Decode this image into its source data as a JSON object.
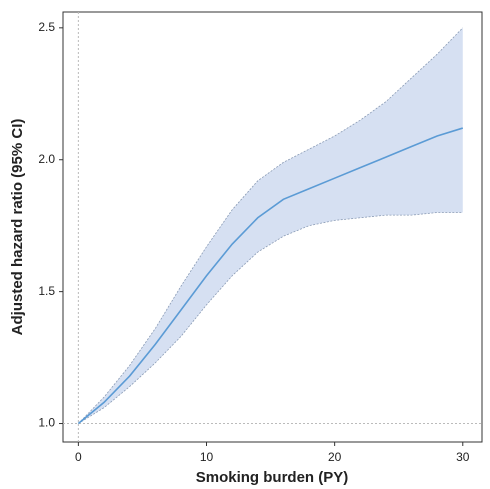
{
  "chart_data": {
    "type": "line",
    "xlabel": "Smoking burden (PY)",
    "ylabel": "Adjusted hazard ratio (95% CI)",
    "x": [
      0,
      2,
      4,
      6,
      8,
      10,
      12,
      14,
      16,
      18,
      20,
      22,
      24,
      26,
      28,
      30
    ],
    "series": [
      {
        "color": "#5b9bd5",
        "band_color": "#d6e0f2",
        "values": [
          1.0,
          1.08,
          1.18,
          1.3,
          1.43,
          1.56,
          1.68,
          1.78,
          1.85,
          1.89,
          1.93,
          1.97,
          2.01,
          2.05,
          2.09,
          2.12
        ],
        "upper": [
          1.0,
          1.1,
          1.22,
          1.36,
          1.52,
          1.67,
          1.81,
          1.92,
          1.99,
          2.04,
          2.09,
          2.15,
          2.22,
          2.31,
          2.4,
          2.5
        ],
        "lower": [
          1.0,
          1.06,
          1.14,
          1.23,
          1.33,
          1.45,
          1.56,
          1.65,
          1.71,
          1.75,
          1.77,
          1.78,
          1.79,
          1.79,
          1.8,
          1.8
        ]
      }
    ],
    "xlim": [
      -1.2,
      31.5
    ],
    "ylim": [
      0.93,
      2.56
    ],
    "xticks": [
      0,
      10,
      20,
      30
    ],
    "yticks": [
      {
        "value": 1,
        "label": "1.0"
      },
      1.5,
      {
        "value": 2,
        "label": "2.0"
      },
      2.5
    ],
    "ref_x": 0,
    "ref_y": 1
  }
}
